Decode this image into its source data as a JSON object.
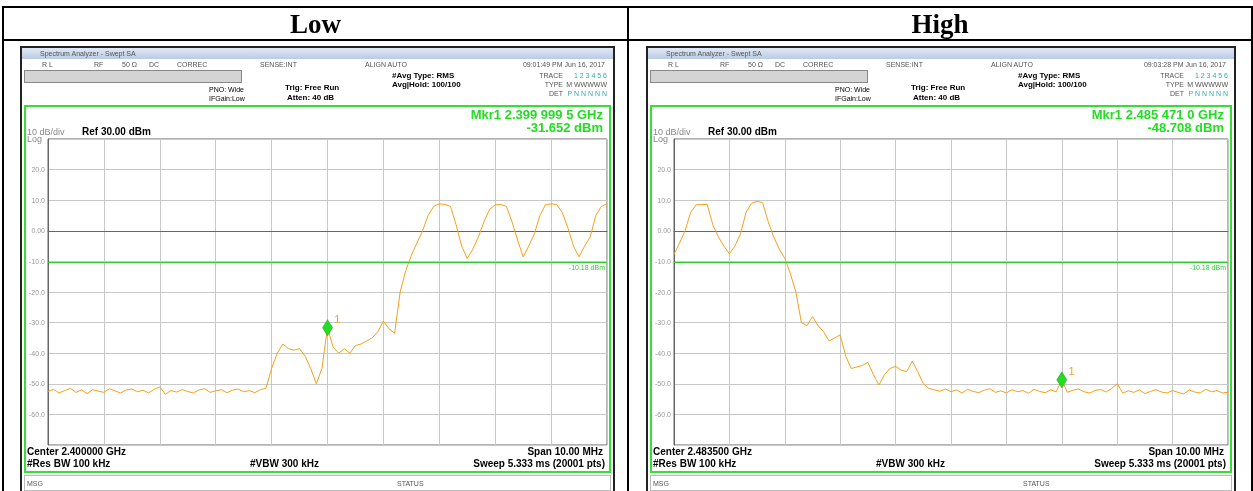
{
  "chart_data": [
    {
      "type": "line",
      "title": "Low",
      "grid": true,
      "tick_labels": "y",
      "categories": [
        null,
        null,
        null,
        null,
        null,
        null,
        null,
        null,
        null,
        null,
        null,
        null,
        null,
        null,
        null,
        null,
        null,
        null,
        null,
        null,
        null,
        null,
        null,
        null,
        null,
        null,
        null,
        null,
        null,
        null,
        null,
        null,
        null,
        null,
        null,
        null,
        null,
        null,
        null,
        null,
        null,
        null,
        null,
        null,
        null,
        null,
        null,
        null,
        null,
        null,
        null,
        null,
        null,
        null,
        null,
        null,
        null,
        null,
        null,
        null,
        null,
        null,
        null,
        null,
        null,
        null,
        null,
        null,
        null,
        null,
        null,
        null,
        null,
        null,
        null,
        null,
        null,
        null,
        null,
        null,
        null,
        null,
        null,
        null,
        null,
        null,
        null,
        null,
        null,
        null,
        null,
        null,
        null,
        null,
        null,
        null,
        null,
        null,
        null,
        null,
        null
      ],
      "ylim": [
        -70,
        30
      ],
      "yticks": [
        {
          "value": -70,
          "label": null
        },
        {
          "value": -60,
          "label": "-60.0"
        },
        {
          "value": -50,
          "label": "-50.0"
        },
        {
          "value": -40,
          "label": "-40.0"
        },
        {
          "value": -30,
          "label": "-30.0"
        },
        {
          "value": -20,
          "label": "-20.0"
        },
        {
          "value": -10,
          "label": "-10.0"
        },
        {
          "value": 0,
          "label": "0.00"
        },
        {
          "value": 10,
          "label": "10.0"
        },
        {
          "value": 20,
          "label": "20.0"
        },
        {
          "value": 30,
          "label": null
        }
      ],
      "ref_lines": [
        {
          "axis": "y",
          "value": -10.18,
          "label": "-10.18 dBm",
          "color": "#2ecc2e"
        }
      ],
      "series": [
        {
          "color": "#f5a01a",
          "values": [
            -52.5,
            -51.8,
            -53,
            -52.2,
            -51.5,
            -52.8,
            -52,
            -53.2,
            -51.9,
            -52.4,
            -52.8,
            -51.6,
            -52.3,
            -53,
            -52,
            -51.7,
            -52.6,
            -52.1,
            -53,
            -51.8,
            -51,
            -53.4,
            -52.2,
            -52.7,
            -51.9,
            -52.5,
            -53,
            -52,
            -51.6,
            -52.8,
            -52.3,
            -51.9,
            -52.9,
            -52.1,
            -51.7,
            -52.6,
            -52.2,
            -52.9,
            -51.9,
            -51.5,
            -45,
            -40,
            -37,
            -38.5,
            -39,
            -38.5,
            -41,
            -45,
            -50,
            -45,
            -31.652,
            -38,
            -40,
            -38.5,
            -40,
            -37.5,
            -37,
            -36,
            -35,
            -33,
            -29.5,
            -32,
            -33.5,
            -20,
            -13,
            -8,
            -4,
            0,
            5,
            8,
            8.8,
            8.6,
            8,
            2,
            -5,
            -9,
            -6,
            -2,
            3,
            7,
            8.5,
            8.6,
            8,
            3,
            -3,
            -8.5,
            -5,
            -1,
            5,
            8.5,
            8.8,
            8.6,
            6,
            1,
            -5,
            -8.5,
            -5,
            -2,
            5,
            8,
            8.8
          ]
        }
      ],
      "annotations": [
        "Spectrum Analyzer - Swept SA",
        "R L",
        "RF",
        "50 Ω",
        "DC",
        "CORREC",
        "SENSE:INT",
        "ALIGN AUTO",
        "09:01:49 PM Jun 16, 2017",
        "PNO: Wide",
        "IFGain:Low",
        "Trig: Free Run",
        "Atten: 40 dB",
        "#Avg Type: RMS",
        "Avg|Hold: 100/100",
        "TRACE",
        "TYPE",
        "DET",
        "1 2 3 4 5 6",
        "M WWWWW",
        "P N N N N N",
        "Mkr1 2.399 999 5 GHz",
        "-31.652 dBm",
        "10 dB/div",
        "Log",
        "Ref 30.00 dBm",
        "Center 2.400000 GHz",
        "Span 10.00 MHz",
        "#Res BW 100 kHz",
        "#VBW 300 kHz",
        "Sweep  5.333 ms (20001 pts)",
        "MSG",
        "STATUS",
        {
          "text": "1",
          "y": -31.652
        }
      ]
    },
    {
      "type": "line",
      "title": "High",
      "grid": true,
      "tick_labels": "y",
      "categories": [
        null,
        null,
        null,
        null,
        null,
        null,
        null,
        null,
        null,
        null,
        null,
        null,
        null,
        null,
        null,
        null,
        null,
        null,
        null,
        null,
        null,
        null,
        null,
        null,
        null,
        null,
        null,
        null,
        null,
        null,
        null,
        null,
        null,
        null,
        null,
        null,
        null,
        null,
        null,
        null,
        null,
        null,
        null,
        null,
        null,
        null,
        null,
        null,
        null,
        null,
        null,
        null,
        null,
        null,
        null,
        null,
        null,
        null,
        null,
        null,
        null,
        null,
        null,
        null,
        null,
        null,
        null,
        null,
        null,
        null,
        null,
        null,
        null,
        null,
        null,
        null,
        null,
        null,
        null,
        null,
        null,
        null,
        null,
        null,
        null,
        null,
        null,
        null,
        null,
        null,
        null,
        null,
        null,
        null,
        null,
        null,
        null,
        null,
        null,
        null,
        null
      ],
      "ylim": [
        -70,
        30
      ],
      "yticks": [
        {
          "value": -70,
          "label": null
        },
        {
          "value": -60,
          "label": "-60.0"
        },
        {
          "value": -50,
          "label": "-50.0"
        },
        {
          "value": -40,
          "label": "-40.0"
        },
        {
          "value": -30,
          "label": "-30.0"
        },
        {
          "value": -20,
          "label": "-20.0"
        },
        {
          "value": -10,
          "label": "-10.0"
        },
        {
          "value": 0,
          "label": "0.00"
        },
        {
          "value": 10,
          "label": "10.0"
        },
        {
          "value": 20,
          "label": "20.0"
        },
        {
          "value": 30,
          "label": null
        }
      ],
      "ref_lines": [
        {
          "axis": "y",
          "value": -10.18,
          "label": "-10.18 dBm",
          "color": "#2ecc2e"
        }
      ],
      "series": [
        {
          "color": "#f5a01a",
          "values": [
            -7.7,
            -4,
            0,
            6,
            8.5,
            8.6,
            8.6,
            2,
            -2,
            -5,
            -7.5,
            -5,
            -1,
            6,
            9,
            9.6,
            9.2,
            3,
            -2,
            -6,
            -9,
            -14,
            -20,
            -30,
            -31,
            -28,
            -31,
            -33,
            -36,
            -35,
            -34,
            -41,
            -45,
            -44.5,
            -44,
            -43,
            -47,
            -50.4,
            -47,
            -45,
            -44.3,
            -45.5,
            -46,
            -42.6,
            -46,
            -50,
            -51.5,
            -52,
            -52.4,
            -51.7,
            -52.6,
            -52,
            -53,
            -51.8,
            -52.5,
            -52.9,
            -52.1,
            -51.6,
            -52.8,
            -52.3,
            -53,
            -51.9,
            -52.6,
            -52.2,
            -53.1,
            -51.8,
            -52.5,
            -52.9,
            -52,
            -52.6,
            -48.708,
            -52.8,
            -52.1,
            -51.7,
            -52.6,
            -53,
            -52.2,
            -51.8,
            -52.7,
            -51.5,
            -50,
            -53,
            -52.3,
            -52.8,
            -52,
            -53.2,
            -52.5,
            -51.9,
            -52.7,
            -53,
            -52.2,
            -52.8,
            -53.3,
            -52,
            -52.7,
            -53,
            -51.8,
            -52.6,
            -52.2,
            -53,
            -52.8
          ]
        }
      ],
      "annotations": [
        "Spectrum Analyzer - Swept SA",
        "R L",
        "RF",
        "50 Ω",
        "DC",
        "CORREC",
        "SENSE:INT",
        "ALIGN AUTO",
        "09:03:28 PM Jun 16, 2017",
        "PNO: Wide",
        "IFGain:Low",
        "Trig: Free Run",
        "Atten: 40 dB",
        "#Avg Type: RMS",
        "Avg|Hold: 100/100",
        "TRACE",
        "TYPE",
        "DET",
        "1 2 3 4 5 6",
        "M WWWWW",
        "P N N N N N",
        "Mkr1 2.485 471 0 GHz",
        "-48.708 dBm",
        "10 dB/div",
        "Log",
        "Ref 30.00 dBm",
        "Center 2.483500 GHz",
        "Span 10.00 MHz",
        "#Res BW 100 kHz",
        "#VBW 300 kHz",
        "Sweep  5.333 ms (20001 pts)",
        "MSG",
        "STATUS",
        {
          "text": "1",
          "y": -48.708
        }
      ]
    }
  ]
}
